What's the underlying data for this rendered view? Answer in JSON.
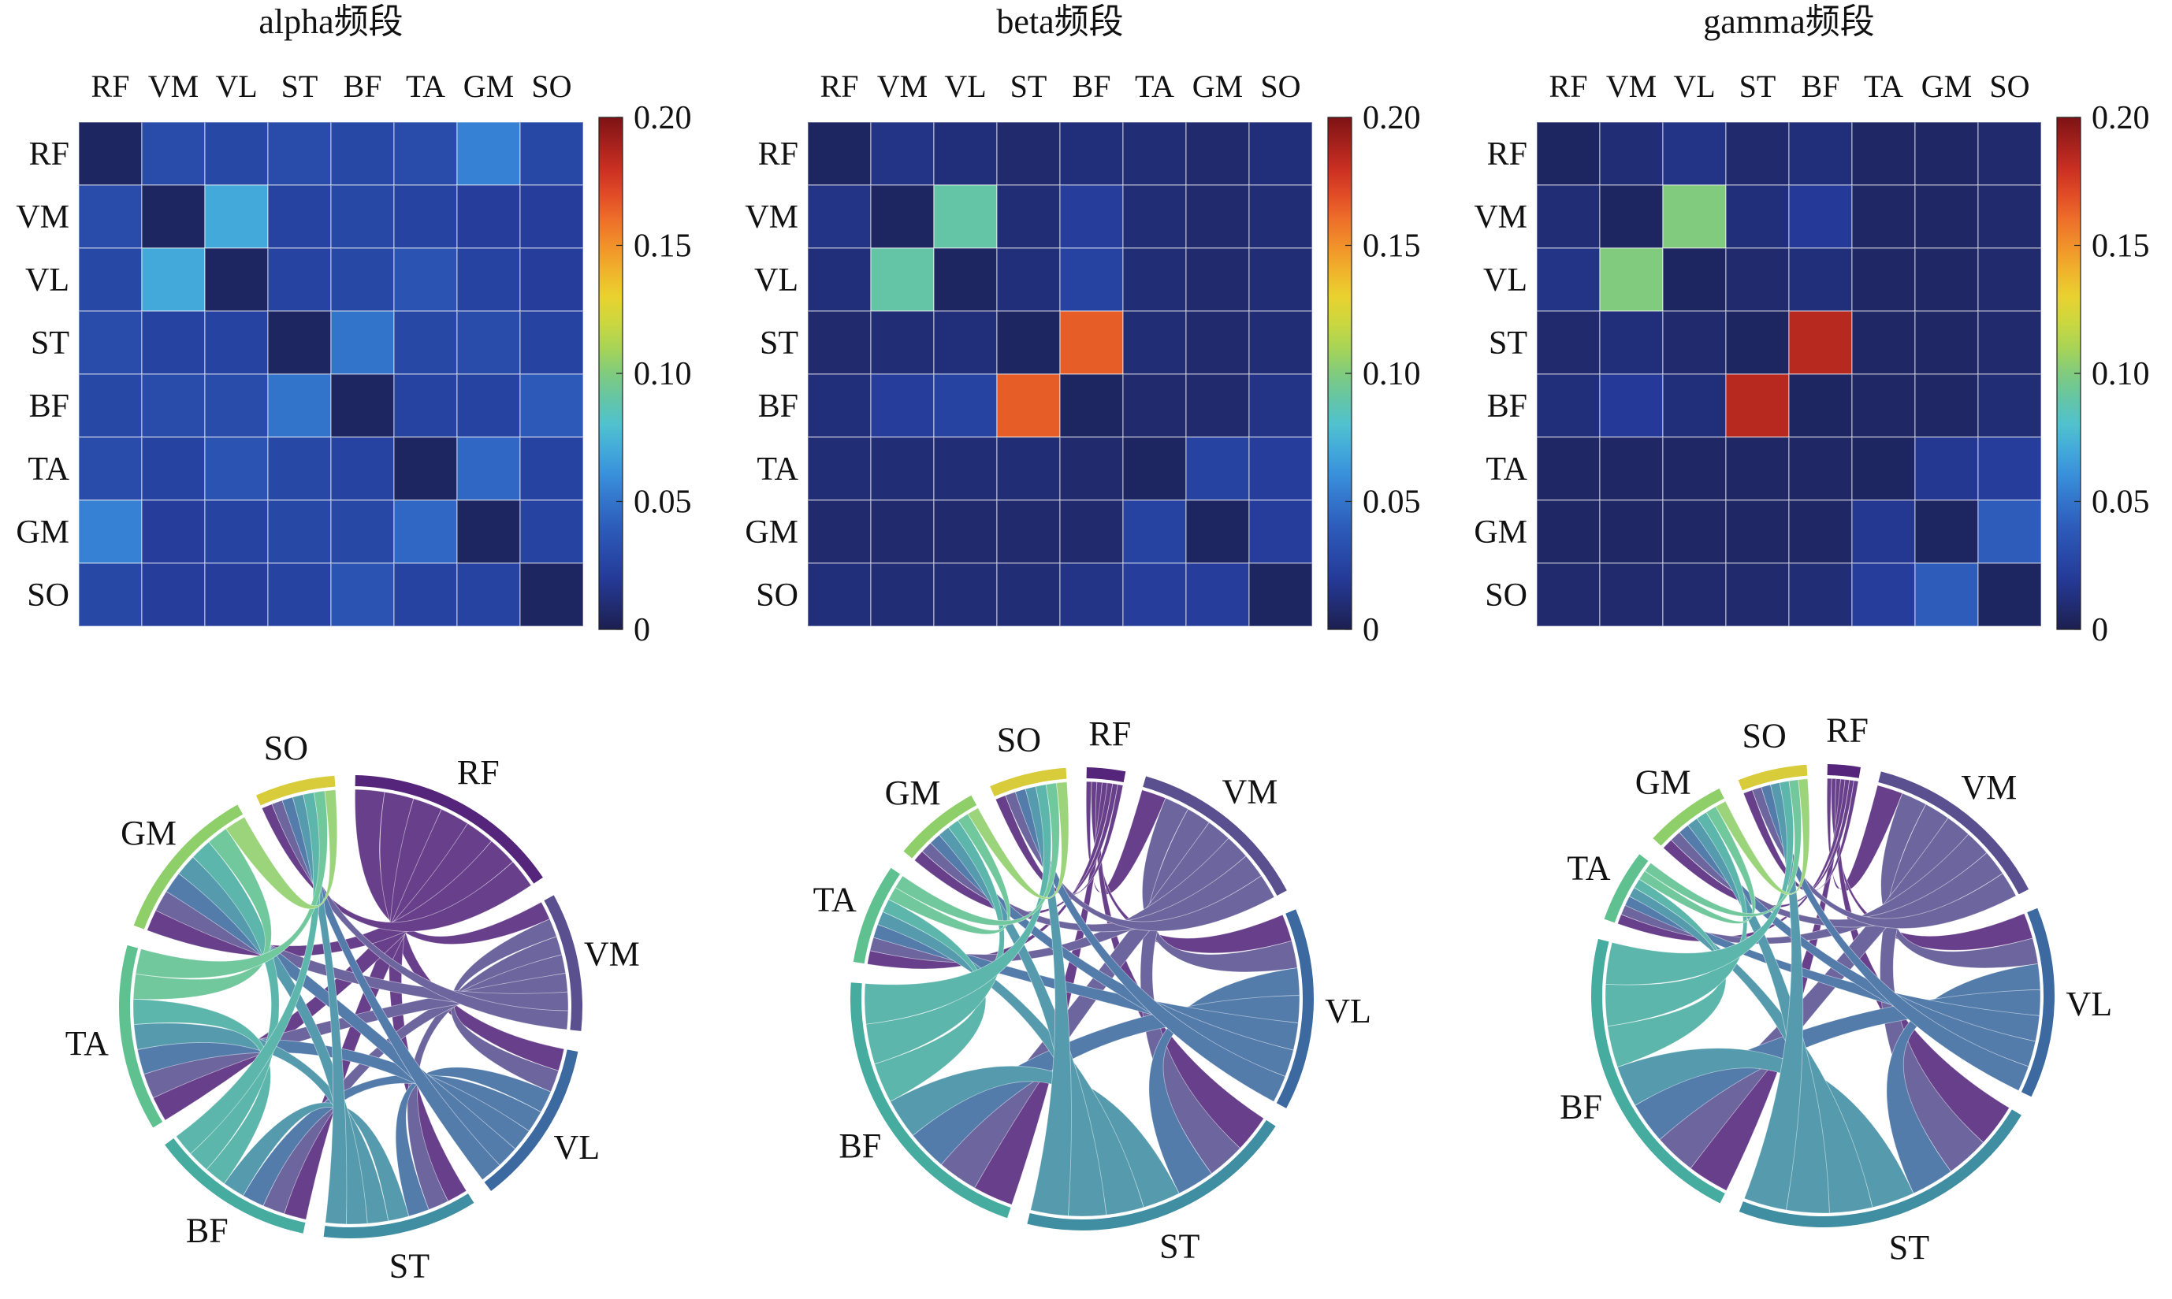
{
  "labels": [
    "RF",
    "VM",
    "VL",
    "ST",
    "BF",
    "TA",
    "GM",
    "SO"
  ],
  "colorbar": {
    "ticks": [
      "0",
      "0.05",
      "0.10",
      "0.15",
      "0.20"
    ],
    "vmin": 0,
    "vmax": 0.2
  },
  "chart_data": [
    {
      "type": "heatmap",
      "title": "alpha频段",
      "rows": [
        "RF",
        "VM",
        "VL",
        "ST",
        "BF",
        "TA",
        "GM",
        "SO"
      ],
      "cols": [
        "RF",
        "VM",
        "VL",
        "ST",
        "BF",
        "TA",
        "GM",
        "SO"
      ],
      "values": [
        [
          0.005,
          0.03,
          0.028,
          0.03,
          0.028,
          0.03,
          0.055,
          0.028
        ],
        [
          0.03,
          0.005,
          0.07,
          0.025,
          0.028,
          0.025,
          0.022,
          0.022
        ],
        [
          0.028,
          0.07,
          0.005,
          0.025,
          0.028,
          0.035,
          0.025,
          0.022
        ],
        [
          0.03,
          0.025,
          0.025,
          0.005,
          0.05,
          0.028,
          0.03,
          0.025
        ],
        [
          0.028,
          0.03,
          0.03,
          0.05,
          0.005,
          0.025,
          0.025,
          0.038
        ],
        [
          0.03,
          0.025,
          0.035,
          0.028,
          0.025,
          0.005,
          0.045,
          0.025
        ],
        [
          0.055,
          0.022,
          0.025,
          0.028,
          0.028,
          0.045,
          0.005,
          0.025
        ],
        [
          0.028,
          0.022,
          0.022,
          0.025,
          0.035,
          0.025,
          0.025,
          0.005
        ]
      ],
      "colorbar_range": [
        0,
        0.2
      ]
    },
    {
      "type": "heatmap",
      "title": "beta频段",
      "rows": [
        "RF",
        "VM",
        "VL",
        "ST",
        "BF",
        "TA",
        "GM",
        "SO"
      ],
      "cols": [
        "RF",
        "VM",
        "VL",
        "ST",
        "BF",
        "TA",
        "GM",
        "SO"
      ],
      "values": [
        [
          0.005,
          0.015,
          0.012,
          0.008,
          0.012,
          0.01,
          0.008,
          0.012
        ],
        [
          0.015,
          0.005,
          0.09,
          0.01,
          0.022,
          0.01,
          0.008,
          0.01
        ],
        [
          0.012,
          0.09,
          0.005,
          0.012,
          0.025,
          0.01,
          0.008,
          0.01
        ],
        [
          0.008,
          0.01,
          0.012,
          0.005,
          0.165,
          0.01,
          0.008,
          0.01
        ],
        [
          0.012,
          0.022,
          0.025,
          0.165,
          0.005,
          0.008,
          0.008,
          0.015
        ],
        [
          0.01,
          0.01,
          0.01,
          0.01,
          0.008,
          0.005,
          0.025,
          0.022
        ],
        [
          0.008,
          0.008,
          0.008,
          0.008,
          0.008,
          0.025,
          0.005,
          0.022
        ],
        [
          0.012,
          0.01,
          0.01,
          0.01,
          0.015,
          0.022,
          0.022,
          0.005
        ]
      ],
      "colorbar_range": [
        0,
        0.2
      ]
    },
    {
      "type": "heatmap",
      "title": "gamma频段",
      "rows": [
        "RF",
        "VM",
        "VL",
        "ST",
        "BF",
        "TA",
        "GM",
        "SO"
      ],
      "cols": [
        "RF",
        "VM",
        "VL",
        "ST",
        "BF",
        "TA",
        "GM",
        "SO"
      ],
      "values": [
        [
          0.005,
          0.01,
          0.015,
          0.008,
          0.012,
          0.006,
          0.006,
          0.008
        ],
        [
          0.01,
          0.005,
          0.1,
          0.012,
          0.02,
          0.006,
          0.006,
          0.008
        ],
        [
          0.015,
          0.1,
          0.005,
          0.008,
          0.012,
          0.006,
          0.006,
          0.008
        ],
        [
          0.008,
          0.012,
          0.008,
          0.005,
          0.185,
          0.006,
          0.006,
          0.008
        ],
        [
          0.012,
          0.02,
          0.012,
          0.185,
          0.005,
          0.006,
          0.006,
          0.01
        ],
        [
          0.006,
          0.006,
          0.006,
          0.006,
          0.006,
          0.005,
          0.018,
          0.022
        ],
        [
          0.006,
          0.006,
          0.006,
          0.006,
          0.006,
          0.018,
          0.005,
          0.04
        ],
        [
          0.008,
          0.008,
          0.008,
          0.008,
          0.01,
          0.022,
          0.04,
          0.005
        ]
      ],
      "colorbar_range": [
        0,
        0.2
      ]
    }
  ],
  "chords": [
    {
      "labels": [
        "RF",
        "VM",
        "VL",
        "ST",
        "BF",
        "TA",
        "GM",
        "SO"
      ],
      "arc_sizes": [
        0.82,
        0.52,
        0.62,
        0.58,
        0.62,
        0.7,
        0.6,
        0.3
      ],
      "colors": [
        "#54257a",
        "#5a5090",
        "#3c6aa0",
        "#3f8ea2",
        "#47aca0",
        "#5fc190",
        "#8fcf6a",
        "#d8cc3a"
      ]
    },
    {
      "labels": [
        "RF",
        "VM",
        "VL",
        "ST",
        "BF",
        "TA",
        "GM",
        "SO"
      ],
      "arc_sizes": [
        0.2,
        0.95,
        1.05,
        1.45,
        1.55,
        0.52,
        0.45,
        0.4
      ],
      "colors": [
        "#54257a",
        "#5a5090",
        "#3c6aa0",
        "#3f8ea2",
        "#47aca0",
        "#5fc190",
        "#8fcf6a",
        "#d8cc3a"
      ]
    },
    {
      "labels": [
        "RF",
        "VM",
        "VL",
        "ST",
        "BF",
        "TA",
        "GM",
        "SO"
      ],
      "arc_sizes": [
        0.18,
        1.05,
        1.05,
        1.75,
        1.7,
        0.4,
        0.45,
        0.38
      ],
      "colors": [
        "#54257a",
        "#5a5090",
        "#3c6aa0",
        "#3f8ea2",
        "#47aca0",
        "#5fc190",
        "#8fcf6a",
        "#d8cc3a"
      ]
    }
  ]
}
